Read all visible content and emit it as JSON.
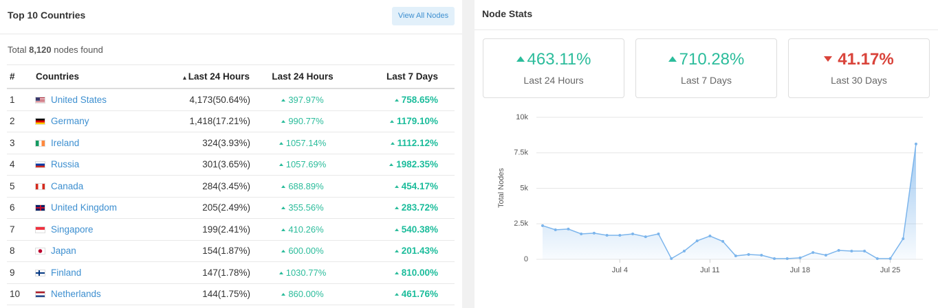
{
  "left_panel": {
    "title": "Top 10 Countries",
    "button": "View All Nodes",
    "total_prefix": "Total",
    "total_count": "8,120",
    "total_suffix": "nodes found",
    "table": {
      "headers": [
        "#",
        "Countries",
        "Last 24 Hours",
        "Last 24 Hours",
        "Last 7 Days"
      ],
      "rows": [
        {
          "rank": 1,
          "country": "United States",
          "count": "4,173(50.64%)",
          "change_24h": "397.97%",
          "change_7d": "758.65%"
        },
        {
          "rank": 2,
          "country": "Germany",
          "count": "1,418(17.21%)",
          "change_24h": "990.77%",
          "change_7d": "1179.10%"
        },
        {
          "rank": 3,
          "country": "Ireland",
          "count": "324(3.93%)",
          "change_24h": "1057.14%",
          "change_7d": "1112.12%"
        },
        {
          "rank": 4,
          "country": "Russia",
          "count": "301(3.65%)",
          "change_24h": "1057.69%",
          "change_7d": "1982.35%"
        },
        {
          "rank": 5,
          "country": "Canada",
          "count": "284(3.45%)",
          "change_24h": "688.89%",
          "change_7d": "454.17%"
        },
        {
          "rank": 6,
          "country": "United Kingdom",
          "count": "205(2.49%)",
          "change_24h": "355.56%",
          "change_7d": "283.72%"
        },
        {
          "rank": 7,
          "country": "Singapore",
          "count": "199(2.41%)",
          "change_24h": "410.26%",
          "change_7d": "540.38%"
        },
        {
          "rank": 8,
          "country": "Japan",
          "count": "154(1.87%)",
          "change_24h": "600.00%",
          "change_7d": "201.43%"
        },
        {
          "rank": 9,
          "country": "Finland",
          "count": "147(1.78%)",
          "change_24h": "1030.77%",
          "change_7d": "810.00%"
        },
        {
          "rank": 10,
          "country": "Netherlands",
          "count": "144(1.75%)",
          "change_24h": "860.00%",
          "change_7d": "461.76%"
        }
      ]
    }
  },
  "right_panel": {
    "title": "Node Stats",
    "cards": [
      {
        "value": "463.11%",
        "label": "Last 24 Hours",
        "direction": "up"
      },
      {
        "value": "710.28%",
        "label": "Last 7 Days",
        "direction": "up"
      },
      {
        "value": "41.17%",
        "label": "Last 30 Days",
        "direction": "down"
      }
    ]
  },
  "chart_data": {
    "type": "area",
    "y_label": "Total Nodes",
    "color": "#7cb5ec",
    "categories": [
      null,
      null,
      null,
      null,
      null,
      null,
      "Jul 4",
      null,
      null,
      null,
      null,
      null,
      null,
      "Jul 11",
      null,
      null,
      null,
      null,
      null,
      null,
      "Jul 18",
      null,
      null,
      null,
      null,
      null,
      null,
      "Jul 25",
      null,
      null
    ],
    "values": [
      2370,
      2080,
      2130,
      1790,
      1840,
      1690,
      1690,
      1790,
      1590,
      1790,
      50,
      580,
      1300,
      1640,
      1260,
      240,
      340,
      290,
      50,
      50,
      100,
      480,
      290,
      630,
      580,
      580,
      50,
      50,
      1450,
      8120
    ],
    "ylim": [
      0,
      10000
    ],
    "yticks": [
      0,
      {
        "value": 2500,
        "label": "2.5k"
      },
      {
        "value": 5000,
        "label": "5k"
      },
      {
        "value": 7500,
        "label": "7.5k"
      },
      {
        "value": 10000,
        "label": "10k"
      }
    ],
    "grid": true
  }
}
